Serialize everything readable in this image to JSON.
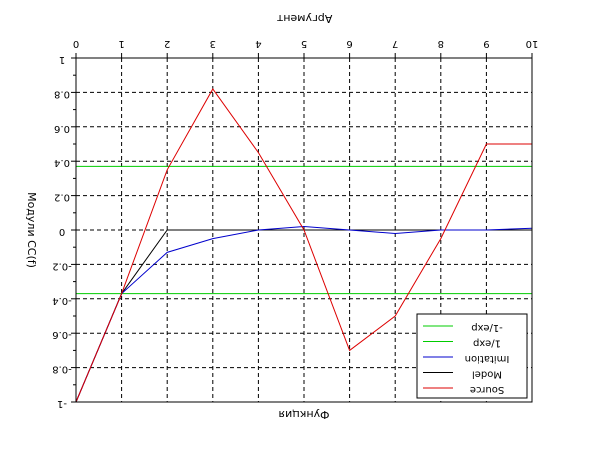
{
  "chart_data": {
    "type": "line",
    "rendered_rotated_180": true,
    "xlabel": "Аргумент",
    "ylabel": "Модули CC(f)",
    "title": "Функция",
    "xlim": [
      0,
      10
    ],
    "ylim": [
      1,
      -1
    ],
    "x_ticks": [
      "0",
      "1",
      "2",
      "3",
      "4",
      "5",
      "6",
      "7",
      "8",
      "9",
      "10"
    ],
    "y_ticks": [
      "1",
      "0.8",
      "0.6",
      "0.4",
      "0.2",
      "0",
      "-0.2",
      "-0.4",
      "-0.6",
      "-0.8",
      "-1"
    ],
    "legend_position": "top-right",
    "grid": true,
    "series": [
      {
        "name": "Source",
        "color": "#dd0000",
        "x": [
          10,
          9,
          8,
          7,
          6,
          5,
          4,
          3,
          2,
          1,
          0
        ],
        "y": [
          0.5,
          0.5,
          -0.05,
          -0.5,
          -0.7,
          0.0,
          0.45,
          0.82,
          0.35,
          -0.37,
          -1.0
        ]
      },
      {
        "name": "Model",
        "color": "#000000",
        "x": [
          10,
          9,
          8,
          7,
          6,
          5,
          4,
          3,
          2,
          1,
          0
        ],
        "y": [
          0.0,
          0.0,
          0.0,
          0.0,
          0.0,
          0.0,
          0.0,
          0.0,
          0.0,
          -0.37,
          -1.0
        ]
      },
      {
        "name": "Imitation",
        "color": "#0000cc",
        "x": [
          10,
          9,
          8,
          7,
          6,
          5,
          4,
          3,
          2,
          1,
          0
        ],
        "y": [
          0.01,
          0.0,
          0.0,
          -0.02,
          0.0,
          0.02,
          0.0,
          -0.05,
          -0.13,
          -0.37,
          -1.0
        ]
      },
      {
        "name": "1/exp",
        "color": "#00cc00",
        "x": [
          0,
          10
        ],
        "y": [
          -0.37,
          -0.37
        ]
      },
      {
        "name": "-1/exp",
        "color": "#00cc00",
        "x": [
          0,
          10
        ],
        "y": [
          0.37,
          0.37
        ]
      }
    ]
  }
}
